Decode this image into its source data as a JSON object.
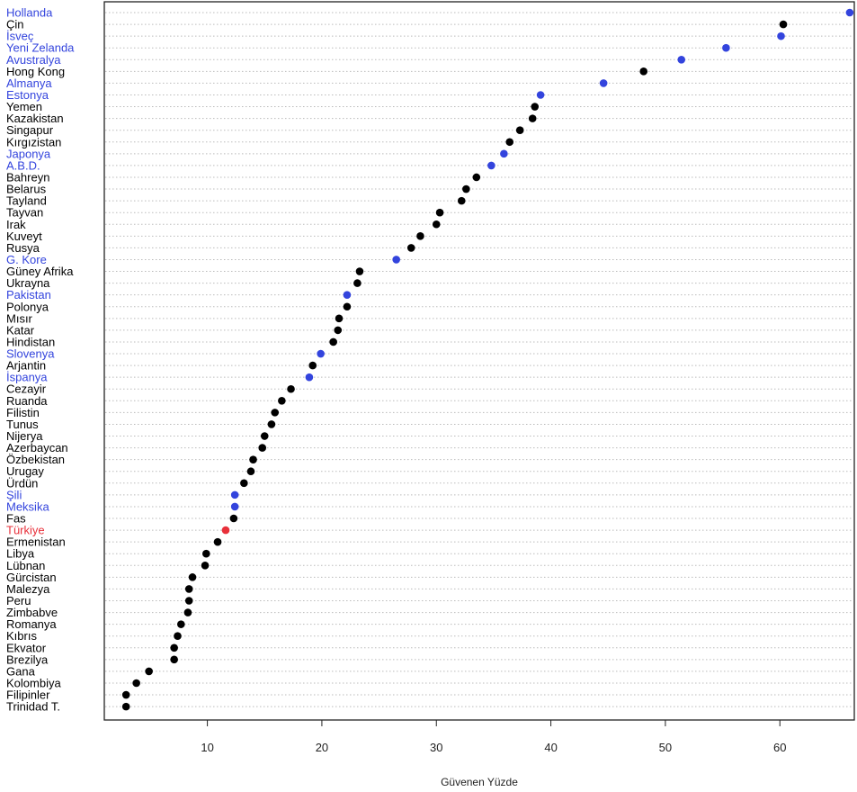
{
  "chart_data": {
    "type": "scatter",
    "title": "",
    "xlabel": "Güvenen Yüzde",
    "ylabel": "",
    "xlim": [
      1,
      66.5
    ],
    "xticks": [
      10,
      20,
      30,
      40,
      50,
      60
    ],
    "grid": true,
    "colors": {
      "default": "#000000",
      "highlight": "#3344dd",
      "turkey": "#e8303a"
    },
    "categories": [
      "Hollanda",
      "Çin",
      "İsveç",
      "Yeni Zelanda",
      "Avustralya",
      "Hong Kong",
      "Almanya",
      "Estonya",
      "Yemen",
      "Kazakistan",
      "Singapur",
      "Kırgızistan",
      "Japonya",
      "A.B.D.",
      "Bahreyn",
      "Belarus",
      "Tayland",
      "Tayvan",
      "Irak",
      "Kuveyt",
      "Rusya",
      "G. Kore",
      "Güney Afrika",
      "Ukrayna",
      "Pakistan",
      "Polonya",
      "Mısır",
      "Katar",
      "Hindistan",
      "Slovenya",
      "Arjantin",
      "İspanya",
      "Cezayir",
      "Ruanda",
      "Filistin",
      "Tunus",
      "Nijerya",
      "Azerbaycan",
      "Özbekistan",
      "Urugay",
      "Ürdün",
      "Şili",
      "Meksika",
      "Fas",
      "Türkiye",
      "Ermenistan",
      "Libya",
      "Lübnan",
      "Gürcistan",
      "Malezya",
      "Peru",
      "Zimbabve",
      "Romanya",
      "Kıbrıs",
      "Ekvator",
      "Brezilya",
      "Gana",
      "Kolombiya",
      "Filipinler",
      "Trinidad T."
    ],
    "values": [
      66.1,
      60.3,
      60.1,
      55.3,
      51.4,
      48.1,
      44.6,
      39.1,
      38.6,
      38.4,
      37.3,
      36.4,
      35.9,
      34.8,
      33.5,
      32.6,
      32.2,
      30.3,
      30.0,
      28.6,
      27.8,
      26.5,
      23.3,
      23.1,
      22.2,
      22.2,
      21.5,
      21.4,
      21.0,
      19.9,
      19.2,
      18.9,
      17.3,
      16.5,
      15.9,
      15.6,
      15.0,
      14.8,
      14.0,
      13.8,
      13.2,
      12.4,
      12.4,
      12.3,
      11.6,
      10.9,
      9.9,
      9.8,
      8.7,
      8.4,
      8.4,
      8.3,
      7.7,
      7.4,
      7.1,
      7.1,
      4.9,
      3.8,
      2.9,
      2.9
    ],
    "groups": [
      "highlight",
      "default",
      "highlight",
      "highlight",
      "highlight",
      "default",
      "highlight",
      "highlight",
      "default",
      "default",
      "default",
      "default",
      "highlight",
      "highlight",
      "default",
      "default",
      "default",
      "default",
      "default",
      "default",
      "default",
      "highlight",
      "default",
      "default",
      "highlight",
      "default",
      "default",
      "default",
      "default",
      "highlight",
      "default",
      "highlight",
      "default",
      "default",
      "default",
      "default",
      "default",
      "default",
      "default",
      "default",
      "default",
      "highlight",
      "highlight",
      "default",
      "turkey",
      "default",
      "default",
      "default",
      "default",
      "default",
      "default",
      "default",
      "default",
      "default",
      "default",
      "default",
      "default",
      "default",
      "default",
      "default"
    ]
  }
}
